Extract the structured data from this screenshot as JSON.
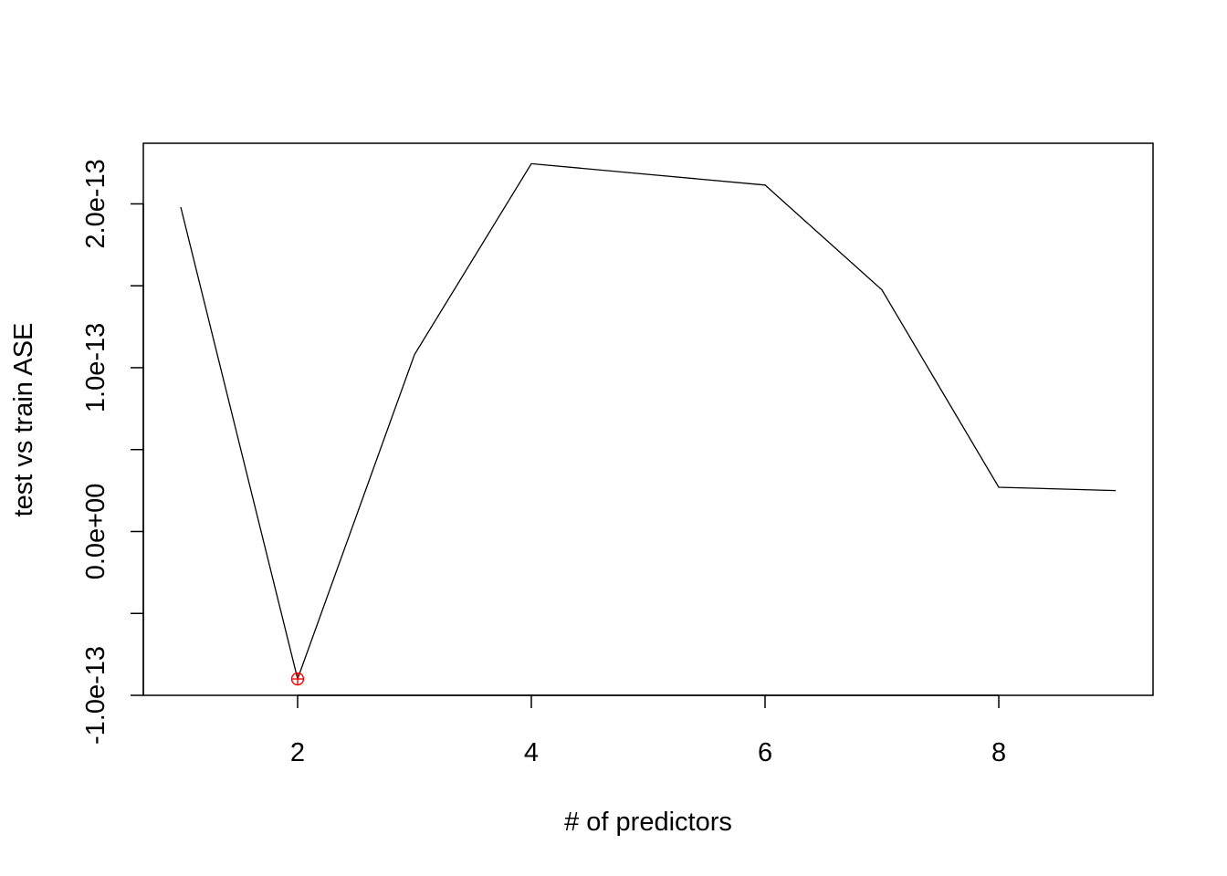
{
  "chart_data": {
    "type": "line",
    "title": "",
    "xlabel": "# of predictors",
    "ylabel": "test vs train ASE",
    "x": [
      1,
      2,
      3,
      4,
      5,
      6,
      7,
      8,
      9
    ],
    "y": [
      1.98e-13,
      -9e-14,
      1.08e-13,
      2.245e-13,
      2.18e-13,
      2.115e-13,
      1.475e-13,
      2.7e-14,
      2.5e-14
    ],
    "xlim": [
      0.68,
      9.32
    ],
    "ylim": [
      -1e-13,
      2.37e-13
    ],
    "x_ticks": [
      {
        "value": 2,
        "label": "2"
      },
      {
        "value": 4,
        "label": "4"
      },
      {
        "value": 6,
        "label": "6"
      },
      {
        "value": 8,
        "label": "8"
      }
    ],
    "y_ticks": [
      {
        "value": -1e-13,
        "label": "-1.0e-13"
      },
      {
        "value": -5e-14,
        "label": ""
      },
      {
        "value": 0,
        "label": "0.0e+00"
      },
      {
        "value": 5e-14,
        "label": ""
      },
      {
        "value": 1e-13,
        "label": "1.0e-13"
      },
      {
        "value": 1.5e-13,
        "label": ""
      },
      {
        "value": 2e-13,
        "label": "2.0e-13"
      }
    ],
    "highlight": {
      "x": 2,
      "y": -9e-14,
      "marker": "circle-plus",
      "color": "#ff0000"
    },
    "line_color": "#000000",
    "grid": false
  }
}
